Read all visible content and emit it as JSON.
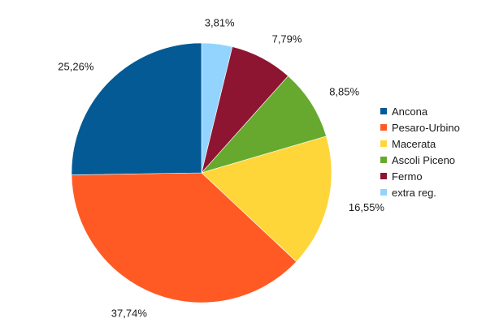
{
  "chart_data": {
    "type": "pie",
    "title": "",
    "categories": [
      "Ancona",
      "Pesaro-Urbino",
      "Macerata",
      "Ascoli Piceno",
      "Fermo",
      "extra reg."
    ],
    "values": [
      25.26,
      37.74,
      16.55,
      8.85,
      7.79,
      3.81
    ],
    "value_labels": [
      "25,26%",
      "37,74%",
      "16,55%",
      "8,85%",
      "7,79%",
      "3,81%"
    ],
    "colors": [
      "#045a94",
      "#ff5a24",
      "#ffd63a",
      "#67a92e",
      "#8e1532",
      "#93d4ff"
    ],
    "draw_order": [
      5,
      4,
      3,
      2,
      1,
      0
    ],
    "start": "12 o'clock",
    "direction": "clockwise",
    "legend_position": "right"
  }
}
